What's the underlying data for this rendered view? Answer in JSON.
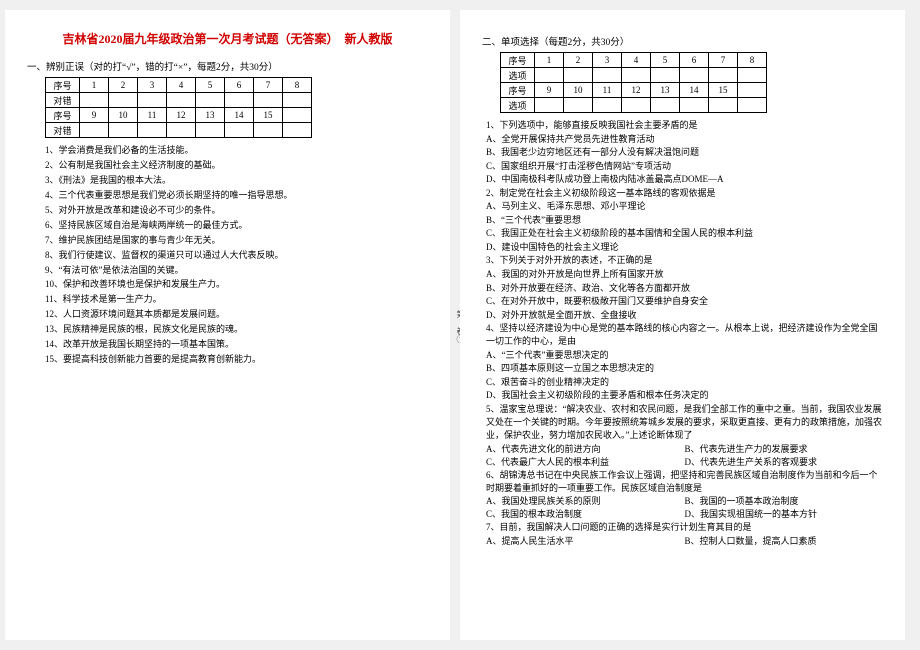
{
  "title_text": "吉林省2020届九年级政治第一次月考试题（无答案）　新人教版",
  "left": {
    "section_head": "一、辨别正误（对的打“√”，错的打“×”，每题2分，共30分）",
    "grid": {
      "row1_label": "序号",
      "row1": [
        "1",
        "2",
        "3",
        "4",
        "5",
        "6",
        "7",
        "8"
      ],
      "row2_label": "对错",
      "row3_label": "序号",
      "row3": [
        "9",
        "10",
        "11",
        "12",
        "13",
        "14",
        "15",
        ""
      ],
      "row4_label": "对错"
    },
    "items": [
      "学会消费是我们必备的生活技能。",
      "公有制是我国社会主义经济制度的基础。",
      "《刑法》是我国的根本大法。",
      "三个代表重要思想是我们党必须长期坚持的唯一指导思想。",
      "对外开放是改革和建设必不可少的条件。",
      "坚持民族区域自治是海峡两岸统一的最佳方式。",
      "维护民族团结是国家的事与青少年无关。",
      "我们行使建议、监督权的渠道只可以通过人大代表反映。",
      "“有法可依”是依法治国的关键。",
      "保护和改善环境也是保护和发展生产力。",
      "科学技术是第一生产力。",
      "人口资源环境问题其本质都是发展问题。",
      "民族精神是民族的根，民族文化是民族的魂。",
      "改革开放是我国长期坚持的一项基本国策。",
      "要提高科技创新能力首要的是提高教育创新能力。"
    ]
  },
  "right": {
    "section_head": "二、单项选择（每题2分，共30分）",
    "grid": {
      "row1_label": "序号",
      "row1": [
        "1",
        "2",
        "3",
        "4",
        "5",
        "6",
        "7",
        "8"
      ],
      "row2_label": "选项",
      "row3_label": "序号",
      "row3": [
        "9",
        "10",
        "11",
        "12",
        "13",
        "14",
        "15",
        ""
      ],
      "row4_label": "选项"
    },
    "q1": {
      "stem": "1、下列选项中，能够直接反映我国社会主要矛盾的是",
      "a": "A、全党开展保持共产党员先进性教育活动",
      "b": "B、我国老少边穷地区还有一部分人没有解决温饱问题",
      "c": "C、国家组织开展“打击淫秽色情网站”专项活动",
      "d": "D、中国南极科考队成功登上南极内陆冰盖最高点DOME—A"
    },
    "q2": {
      "stem": "2、制定党在社会主义初级阶段这一基本路线的客观依据是",
      "a": "A、马列主义、毛泽东思想、邓小平理论",
      "b": "B、“三个代表”重要思想",
      "c": "C、我国正处在社会主义初级阶段的基本国情和全国人民的根本利益",
      "d": "D、建设中国特色的社会主义理论"
    },
    "q3": {
      "stem": "3、下列关于对外开放的表述，不正确的是",
      "a": "A、我国的对外开放是向世界上所有国家开放",
      "b": "B、对外开放要在经济、政治、文化等各方面都开放",
      "c": "C、在对外开放中，既要积极敞开国门又要维护自身安全",
      "d": "D、对外开放就是全面开放、全盘接收"
    },
    "q4": {
      "stem": "4、坚持以经济建设为中心是党的基本路线的核心内容之一。从根本上说，把经济建设作为全党全国一切工作的中心，是由",
      "a": "A、“三个代表”重要思想决定的",
      "b": "B、四项基本原则这一立国之本思想决定的",
      "c": "C、艰苦奋斗的创业精神决定的",
      "d": "D、我国社会主义初级阶段的主要矛盾和根本任务决定的"
    },
    "q5": {
      "stem": "5、温家宝总理说：“解决农业、农村和农民问题，是我们全部工作的重中之重。当前，我国农业发展又处在一个关键的时期。今年要按照统筹城乡发展的要求，采取更直接、更有力的政策措施，加强农业，保护农业，努力增加农民收入。”上述论断体现了",
      "a": "A、代表先进文化的前进方向",
      "b": "B、代表先进生产力的发展要求",
      "c": "C、代表最广大人民的根本利益",
      "d": "D、代表先进生产关系的客观要求"
    },
    "q6": {
      "stem": "6、胡锦涛总书记在中央民族工作会议上强调，把坚持和完善民族区域自治制度作为当前和今后一个时期要着重抓好的一项重要工作。民族区域自治制度是",
      "a": "A、我国处理民族关系的原则",
      "b": "B、我国的一项基本政治制度",
      "c": "C、我国的根本政治制度",
      "d": "D、我国实现祖国统一的基本方针"
    },
    "q7": {
      "stem": "7、目前，我国解决人口问题的正确的选择是实行计划生育其目的是",
      "a": "A、提高人民生活水平",
      "b": "B、控制人口数量，提高人口素质"
    }
  },
  "spine_text": "第Ⅰ卷①"
}
